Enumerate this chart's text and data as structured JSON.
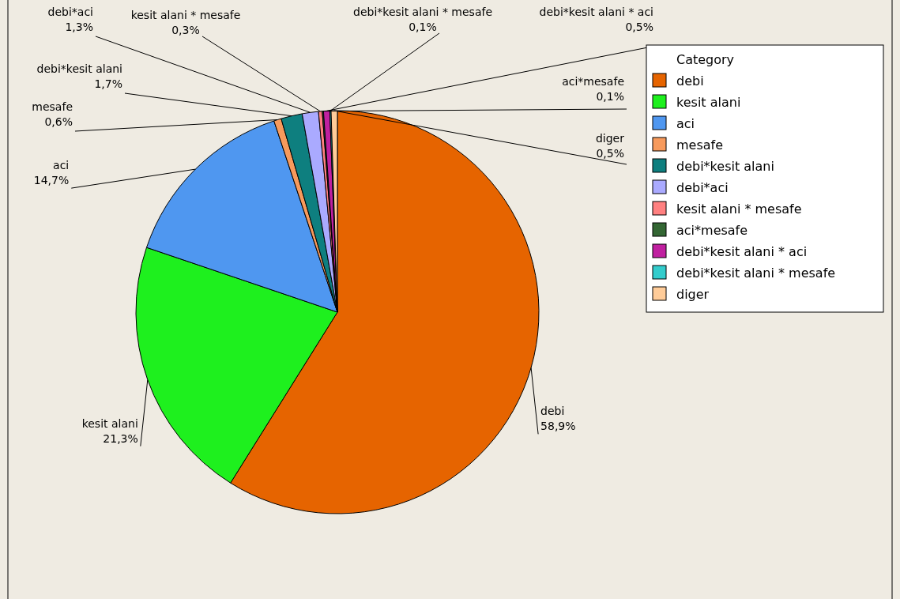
{
  "chart_data": {
    "type": "pie",
    "legend_title": "Category",
    "legend": "top right",
    "categories": [
      "debi",
      "kesit alani",
      "aci",
      "mesafe",
      "debi*kesit alani",
      "debi*aci",
      "kesit alani * mesafe",
      "aci*mesafe",
      "debi*kesit alani * aci",
      "debi*kesit alani * mesafe",
      "diger"
    ],
    "values": [
      58.9,
      21.3,
      14.7,
      0.6,
      1.7,
      1.3,
      0.3,
      0.1,
      0.5,
      0.1,
      0.5
    ],
    "value_labels": [
      "58,9%",
      "21,3%",
      "14,7%",
      "0,6%",
      "1,7%",
      "1,3%",
      "0,3%",
      "0,1%",
      "0,5%",
      "0,1%",
      "0,5%"
    ],
    "colors": [
      "#e66400",
      "#1ef01e",
      "#4f97f0",
      "#f79a5c",
      "#0e7f7f",
      "#aaaaff",
      "#ff8080",
      "#336633",
      "#c020a0",
      "#33cccc",
      "#ffcc99"
    ]
  }
}
